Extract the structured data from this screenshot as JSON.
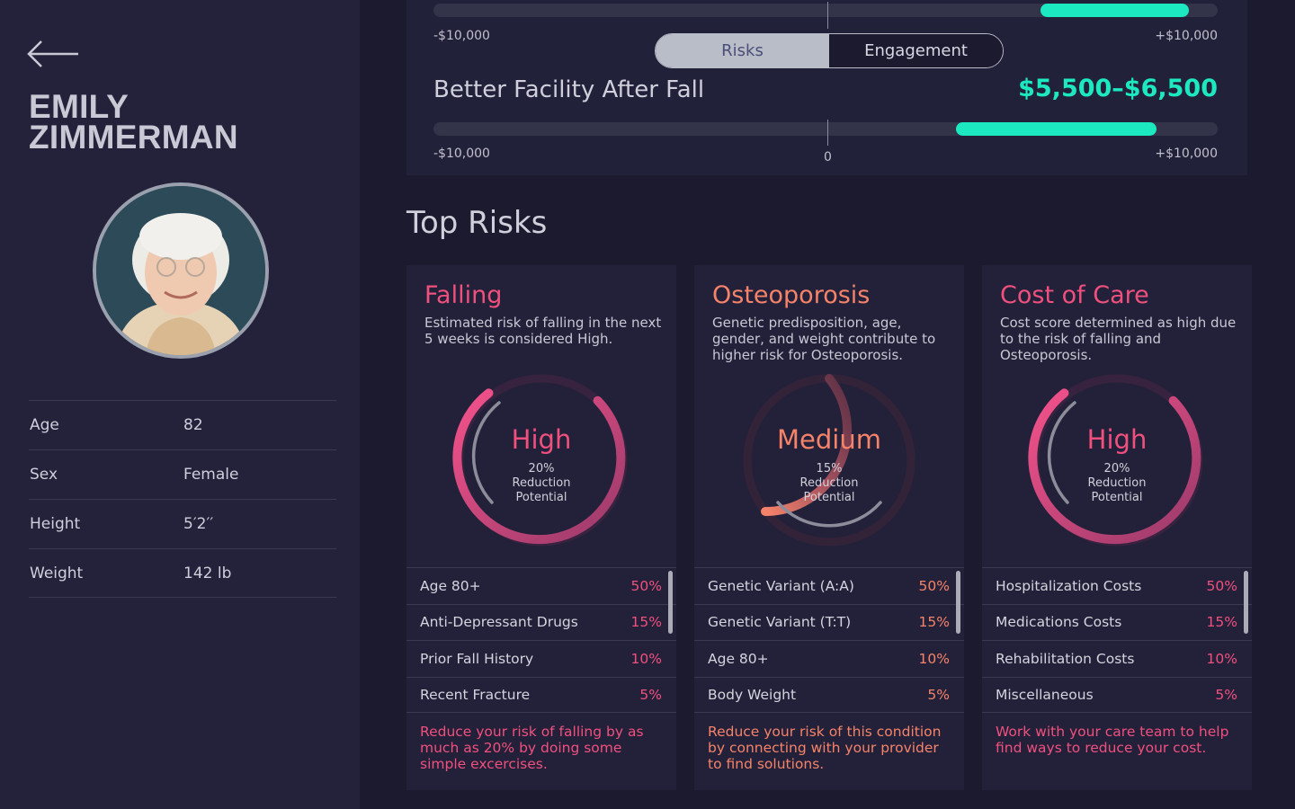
{
  "patient": {
    "first_name": "Emily",
    "last_name": "Zimmerman",
    "info": [
      {
        "label": "Age",
        "value": "82"
      },
      {
        "label": "Sex",
        "value": "Female"
      },
      {
        "label": "Height",
        "value": "5′2′′"
      },
      {
        "label": "Weight",
        "value": "142 lb"
      }
    ]
  },
  "top_slider": {
    "min_label": "-$10,000",
    "max_label": "+$10,000",
    "fill_start_pct": 81,
    "fill_end_pct": 100
  },
  "toggle": {
    "options": [
      "Risks",
      "Engagement"
    ],
    "selected": "Risks"
  },
  "scenario": {
    "title": "Better Facility After Fall",
    "value": "$5,500–$6,500",
    "min_label": "-$10,000",
    "zero_label": "0",
    "max_label": "+$10,000",
    "range_low": 5500,
    "range_high": 6500
  },
  "section_title": "Top Risks",
  "cards": [
    {
      "title": "Falling",
      "description": "Estimated risk of falling in the next 5 weeks is considered High.",
      "level": "High",
      "reduction_pct": "20%",
      "reduction_label_1": "Reduction",
      "reduction_label_2": "Potential",
      "color": "#f0507e",
      "factors": [
        {
          "name": "Age 80+",
          "pct": "50%"
        },
        {
          "name": "Anti-Depressant Drugs",
          "pct": "15%"
        },
        {
          "name": "Prior Fall History",
          "pct": "10%"
        },
        {
          "name": "Recent Fracture",
          "pct": "5%"
        }
      ],
      "tip": "Reduce your risk of falling by as much as 20% by doing some simple excercises."
    },
    {
      "title": "Osteoporosis",
      "description": "Genetic predisposition, age, gender, and weight contribute to higher risk for Osteoporosis.",
      "level": "Medium",
      "reduction_pct": "15%",
      "reduction_label_1": "Reduction",
      "reduction_label_2": "Potential",
      "color": "#f5836a",
      "factors": [
        {
          "name": "Genetic Variant (A:A)",
          "pct": "50%"
        },
        {
          "name": "Genetic Variant (T:T)",
          "pct": "15%"
        },
        {
          "name": "Age 80+",
          "pct": "10%"
        },
        {
          "name": "Body Weight",
          "pct": "5%"
        }
      ],
      "tip": "Reduce your risk of this condition by connecting with your provider to find solutions."
    },
    {
      "title": "Cost of Care",
      "description": "Cost score determined as high due to the risk of falling and Osteoporosis.",
      "level": "High",
      "reduction_pct": "20%",
      "reduction_label_1": "Reduction",
      "reduction_label_2": "Potential",
      "color": "#f0507e",
      "factors": [
        {
          "name": "Hospitalization Costs",
          "pct": "50%"
        },
        {
          "name": "Medications Costs",
          "pct": "15%"
        },
        {
          "name": "Rehabilitation Costs",
          "pct": "10%"
        },
        {
          "name": "Miscellaneous",
          "pct": "5%"
        }
      ],
      "tip": "Work with your care team to help find ways to reduce your cost."
    }
  ]
}
